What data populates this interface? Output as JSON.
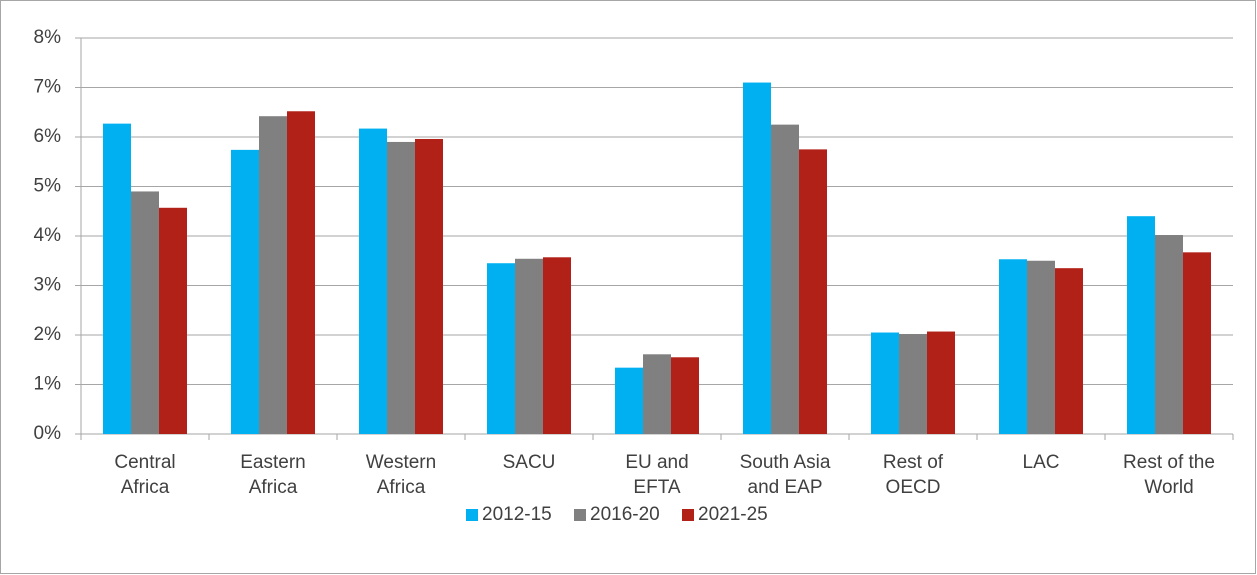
{
  "chart_data": {
    "type": "bar",
    "categories": [
      [
        "Central",
        "Africa"
      ],
      [
        "Eastern",
        "Africa"
      ],
      [
        "Western",
        "Africa"
      ],
      [
        "SACU"
      ],
      [
        "EU and",
        "EFTA"
      ],
      [
        "South Asia",
        "and EAP"
      ],
      [
        "Rest of",
        "OECD"
      ],
      [
        "LAC"
      ],
      [
        "Rest of the",
        "World"
      ]
    ],
    "series": [
      {
        "name": "2012-15",
        "color": "#00b0f0",
        "values": [
          6.27,
          5.74,
          6.17,
          3.45,
          1.34,
          7.1,
          2.05,
          3.53,
          4.4
        ]
      },
      {
        "name": "2016-20",
        "color": "#808080",
        "values": [
          4.9,
          6.42,
          5.9,
          3.54,
          1.61,
          6.25,
          2.02,
          3.5,
          4.02
        ]
      },
      {
        "name": "2021-25",
        "color": "#b22118",
        "values": [
          4.57,
          6.52,
          5.96,
          3.57,
          1.55,
          5.75,
          2.07,
          3.35,
          3.67
        ]
      }
    ],
    "ylim": [
      0,
      8
    ],
    "yticks": [
      {
        "value": 0,
        "label": "0%"
      },
      {
        "value": 1,
        "label": "1%"
      },
      {
        "value": 2,
        "label": "2%"
      },
      {
        "value": 3,
        "label": "3%"
      },
      {
        "value": 4,
        "label": "4%"
      },
      {
        "value": 5,
        "label": "5%"
      },
      {
        "value": 6,
        "label": "6%"
      },
      {
        "value": 7,
        "label": "7%"
      },
      {
        "value": 8,
        "label": "8%"
      }
    ],
    "grid": true,
    "legend": "bottom"
  }
}
